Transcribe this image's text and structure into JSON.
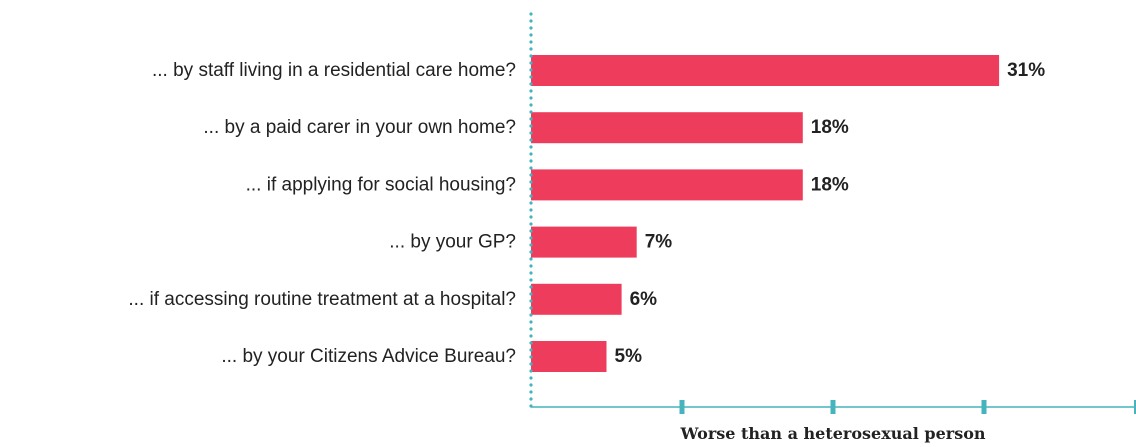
{
  "chart_data": {
    "type": "bar",
    "orientation": "horizontal",
    "categories": [
      "... by staff living in a residential care home?",
      "... by a paid carer in your own home?",
      "... if applying for social housing?",
      "... by your GP?",
      "... if accessing routine treatment at a hospital?",
      "... by your Citizens Advice Bureau?"
    ],
    "values": [
      31,
      18,
      18,
      7,
      6,
      5
    ],
    "value_labels": [
      "31%",
      "18%",
      "18%",
      "7%",
      "6%",
      "5%"
    ],
    "xlabel": "Worse than a heterosexual person",
    "xlim": [
      0,
      40
    ],
    "x_tick_values": [
      0,
      10,
      20,
      30,
      40
    ],
    "tick_labels_shown": false,
    "grid": false,
    "colors": {
      "bar": "#ee3d5c",
      "axis": "#45b4bc",
      "text": "#222222"
    }
  }
}
